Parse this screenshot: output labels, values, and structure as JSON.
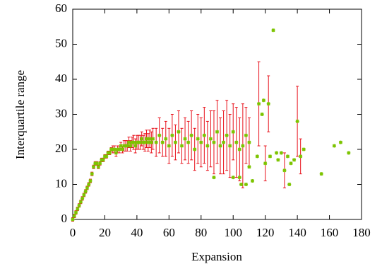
{
  "chart_data": {
    "type": "scatter",
    "xlabel": "Expansion",
    "ylabel": "Interquartile range",
    "xlim": [
      0,
      180
    ],
    "ylim": [
      0,
      60
    ],
    "xticks": [
      0,
      20,
      40,
      60,
      80,
      100,
      120,
      140,
      160,
      180
    ],
    "yticks": [
      0,
      10,
      20,
      30,
      40,
      50,
      60
    ],
    "grid": false,
    "series": [
      {
        "color": "#7cc400",
        "error_color": "#e8101a",
        "x": [
          0,
          1,
          2,
          3,
          4,
          5,
          6,
          7,
          8,
          9,
          10,
          11,
          12,
          13,
          14,
          15,
          16,
          17,
          18,
          19,
          20,
          21,
          22,
          23,
          24,
          25,
          26,
          27,
          28,
          29,
          30,
          31,
          32,
          33,
          34,
          35,
          36,
          37,
          38,
          39,
          40,
          41,
          42,
          43,
          44,
          45,
          46,
          47,
          48,
          49,
          50,
          52,
          54,
          56,
          58,
          60,
          62,
          64,
          66,
          68,
          70,
          72,
          74,
          76,
          78,
          80,
          82,
          84,
          86,
          88,
          90,
          92,
          94,
          96,
          98,
          100,
          102,
          104,
          106,
          108,
          110,
          88,
          100,
          104,
          105,
          108,
          110,
          112,
          115,
          116,
          118,
          119,
          120,
          122,
          123,
          125,
          127,
          128,
          130,
          132,
          134,
          135,
          136,
          138,
          140,
          142,
          144,
          155,
          163,
          167,
          172
        ],
        "values": [
          0,
          1,
          2,
          3,
          4,
          5,
          6,
          7,
          8,
          9,
          10,
          11,
          13,
          15,
          16,
          16,
          15,
          16,
          17,
          17,
          18,
          18,
          19,
          19,
          20,
          20,
          20,
          19,
          20,
          20,
          21,
          20,
          21,
          21,
          21,
          22,
          21,
          22,
          22,
          21,
          22,
          22,
          22,
          23,
          22,
          22,
          23,
          22,
          23,
          22,
          23,
          22,
          24,
          22,
          23,
          21,
          24,
          22,
          25,
          21,
          23,
          22,
          24,
          20,
          23,
          22,
          24,
          21,
          23,
          22,
          25,
          21,
          22,
          24,
          21,
          25,
          22,
          20,
          21,
          24,
          22,
          12,
          12,
          12,
          10,
          10,
          15,
          11,
          18,
          33,
          30,
          34,
          16,
          33,
          18,
          54,
          19,
          17,
          19,
          14,
          18,
          10,
          16,
          17,
          28,
          18,
          20,
          13,
          21,
          22,
          19
        ],
        "errors": [
          0.5,
          0.5,
          0.5,
          0.5,
          0.5,
          0.5,
          0.5,
          0.5,
          0.5,
          0.5,
          0.5,
          0.5,
          0.5,
          0.5,
          0.5,
          0.5,
          0.5,
          0.5,
          0.5,
          0.5,
          0.5,
          0.5,
          0.5,
          0.5,
          0.5,
          1,
          1,
          1,
          1,
          1,
          1,
          1,
          1.5,
          1.5,
          1.5,
          1.5,
          1.5,
          1.5,
          2,
          2,
          2,
          2,
          2,
          2,
          2,
          2.5,
          2.5,
          2.5,
          2.5,
          3,
          3,
          4,
          5,
          4,
          5,
          5,
          6,
          5,
          6,
          5,
          6,
          6,
          7,
          6,
          7,
          7,
          8,
          7,
          8,
          9,
          9,
          8,
          9,
          10,
          9,
          8,
          10,
          9,
          12,
          8,
          7,
          0,
          0,
          0,
          0,
          0,
          0,
          0,
          0,
          12,
          0,
          0,
          5,
          8,
          0,
          0,
          0,
          0,
          0,
          5,
          0,
          0,
          0,
          0,
          10,
          5,
          0,
          0,
          0,
          0,
          0
        ]
      }
    ]
  }
}
